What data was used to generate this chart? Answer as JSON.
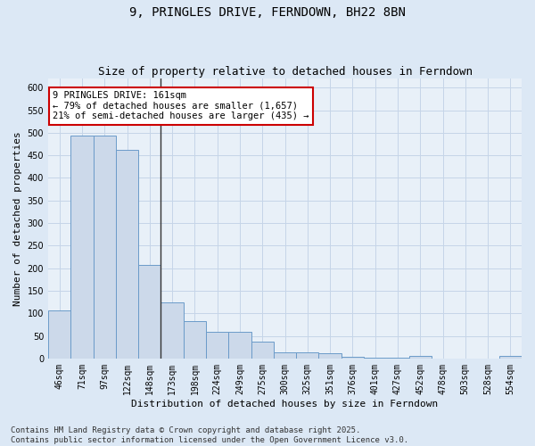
{
  "title1": "9, PRINGLES DRIVE, FERNDOWN, BH22 8BN",
  "title2": "Size of property relative to detached houses in Ferndown",
  "xlabel": "Distribution of detached houses by size in Ferndown",
  "ylabel": "Number of detached properties",
  "categories": [
    "46sqm",
    "71sqm",
    "97sqm",
    "122sqm",
    "148sqm",
    "173sqm",
    "198sqm",
    "224sqm",
    "249sqm",
    "275sqm",
    "300sqm",
    "325sqm",
    "351sqm",
    "376sqm",
    "401sqm",
    "427sqm",
    "452sqm",
    "478sqm",
    "503sqm",
    "528sqm",
    "554sqm"
  ],
  "values": [
    107,
    493,
    493,
    462,
    208,
    125,
    83,
    58,
    58,
    38,
    13,
    13,
    11,
    3,
    2,
    2,
    5,
    0,
    0,
    0,
    5
  ],
  "bar_color": "#ccd9ea",
  "bar_edge_color": "#6b9bc9",
  "grid_color": "#c5d5e8",
  "background_color": "#dce8f5",
  "plot_bg_color": "#e8f0f8",
  "annotation_text": "9 PRINGLES DRIVE: 161sqm\n← 79% of detached houses are smaller (1,657)\n21% of semi-detached houses are larger (435) →",
  "annotation_box_color": "#ffffff",
  "annotation_border_color": "#cc0000",
  "vline_color": "#333333",
  "ylim": [
    0,
    620
  ],
  "yticks": [
    0,
    50,
    100,
    150,
    200,
    250,
    300,
    350,
    400,
    450,
    500,
    550,
    600
  ],
  "footnote1": "Contains HM Land Registry data © Crown copyright and database right 2025.",
  "footnote2": "Contains public sector information licensed under the Open Government Licence v3.0.",
  "title_fontsize": 10,
  "subtitle_fontsize": 9,
  "axis_label_fontsize": 8,
  "tick_fontsize": 7,
  "annotation_fontsize": 7.5,
  "footnote_fontsize": 6.5
}
